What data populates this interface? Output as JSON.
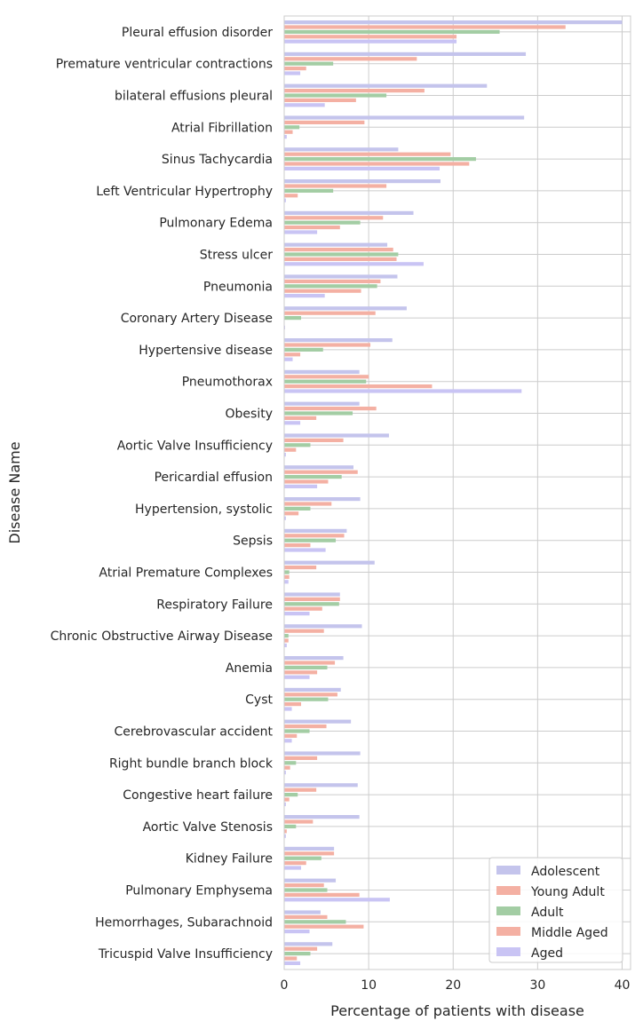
{
  "chart_data": {
    "type": "bar",
    "orientation": "horizontal",
    "xlabel": "Percentage of patients with disease",
    "ylabel": "Disease Name",
    "xlim": [
      0,
      41
    ],
    "xticks": [
      "0",
      "10",
      "20",
      "30",
      "40"
    ],
    "xtick_values": [
      0,
      10,
      20,
      30,
      40
    ],
    "grid": true,
    "legend_position": "bottom-right",
    "categories": [
      "Pleural effusion disorder",
      "Premature ventricular contractions",
      "bilateral effusions pleural",
      "Atrial Fibrillation",
      "Sinus Tachycardia",
      "Left Ventricular Hypertrophy",
      "Pulmonary Edema",
      "Stress ulcer",
      "Pneumonia",
      "Coronary Artery Disease",
      "Hypertensive disease",
      "Pneumothorax",
      "Obesity",
      "Aortic Valve Insufficiency",
      "Pericardial effusion",
      "Hypertension, systolic",
      "Sepsis",
      "Atrial Premature Complexes",
      "Respiratory Failure",
      "Chronic Obstructive Airway Disease",
      "Anemia",
      "Cyst",
      "Cerebrovascular accident",
      "Right bundle branch block",
      "Congestive heart failure",
      "Aortic Valve Stenosis",
      "Kidney Failure",
      "Pulmonary Emphysema",
      "Hemorrhages, Subarachnoid",
      "Tricuspid Valve Insufficiency"
    ],
    "series": [
      {
        "name": "Adolescent",
        "color": "#c4c4ec",
        "values": [
          40.0,
          28.6,
          24.0,
          28.4,
          13.5,
          18.5,
          15.3,
          12.2,
          13.4,
          14.5,
          12.8,
          8.9,
          8.9,
          12.4,
          8.2,
          9.0,
          7.4,
          10.7,
          6.6,
          9.2,
          7.0,
          6.7,
          7.9,
          9.0,
          8.7,
          8.9,
          5.9,
          6.1,
          4.3,
          5.7
        ]
      },
      {
        "name": "Young Adult",
        "color": "#f4b0a3",
        "values": [
          33.3,
          15.7,
          16.6,
          9.5,
          19.7,
          12.1,
          11.7,
          12.9,
          11.4,
          10.8,
          10.2,
          10.0,
          10.9,
          7.0,
          8.7,
          5.6,
          7.1,
          3.8,
          6.6,
          4.7,
          6.0,
          6.3,
          5.0,
          3.9,
          3.8,
          3.4,
          5.9,
          4.7,
          5.1,
          3.9
        ]
      },
      {
        "name": "Adult",
        "color": "#a3cda4",
        "values": [
          25.5,
          5.8,
          12.1,
          1.8,
          22.7,
          5.8,
          9.0,
          13.5,
          11.0,
          2.0,
          4.6,
          9.7,
          8.1,
          3.1,
          6.8,
          3.1,
          6.1,
          0.6,
          6.5,
          0.5,
          5.1,
          5.2,
          3.0,
          1.4,
          1.6,
          1.4,
          4.4,
          5.1,
          7.3,
          3.1
        ]
      },
      {
        "name": "Middle Aged",
        "color": "#f4b0a3",
        "values": [
          20.4,
          2.6,
          8.5,
          1.0,
          21.9,
          1.6,
          6.6,
          13.3,
          9.1,
          0.0,
          1.9,
          17.5,
          3.8,
          1.4,
          5.2,
          1.7,
          3.1,
          0.6,
          4.5,
          0.5,
          3.9,
          2.0,
          1.5,
          0.7,
          0.6,
          0.3,
          2.6,
          8.9,
          9.4,
          1.5
        ]
      },
      {
        "name": "Aged",
        "color": "#c9c4f4",
        "values": [
          20.4,
          1.9,
          4.8,
          0.3,
          18.4,
          0.2,
          3.9,
          16.5,
          4.8,
          0.1,
          1.0,
          28.1,
          1.9,
          0.2,
          3.9,
          0.2,
          4.9,
          0.5,
          3.0,
          0.3,
          3.0,
          0.9,
          0.9,
          0.2,
          0.2,
          0.2,
          2.0,
          12.5,
          3.0,
          1.9
        ]
      }
    ]
  }
}
